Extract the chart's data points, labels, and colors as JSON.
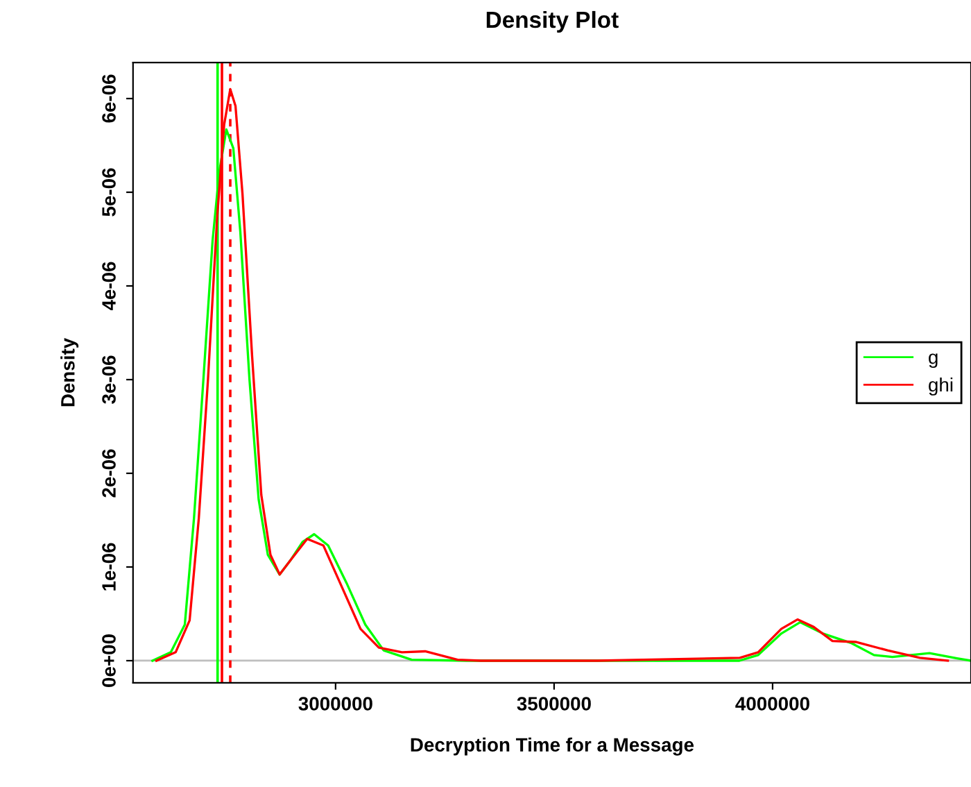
{
  "chart_data": {
    "type": "line",
    "title": "Density Plot",
    "xlabel": "Decryption Time for a Message",
    "ylabel": "Density",
    "series": [
      {
        "name": "g",
        "color": "#00ff00",
        "x": [
          2581000,
          2623000,
          2655000,
          2676000,
          2697500,
          2718500,
          2734000,
          2750000,
          2766000,
          2782000,
          2803000,
          2824000,
          2845000,
          2872000,
          2898000,
          2925000,
          2951000,
          2983000,
          3025000,
          3068000,
          3110000,
          3174000,
          3300000,
          3600000,
          3924000,
          3967000,
          4020000,
          4063000,
          4115000,
          4179000,
          4232000,
          4274000,
          4359000,
          4422000,
          4454000
        ],
        "values": [
          0,
          9e-08,
          3.85e-07,
          1.52e-06,
          3e-06,
          4.48e-06,
          5.22e-06,
          5.67e-06,
          5.47e-06,
          4.58e-06,
          3e-06,
          1.72e-06,
          1.13e-06,
          9.2e-07,
          1.08e-06,
          1.27e-06,
          1.35e-06,
          1.23e-06,
          8.3e-07,
          3.85e-07,
          1.1e-07,
          1e-08,
          0,
          0,
          0,
          6e-08,
          2.9e-07,
          4.1e-07,
          2.9e-07,
          1.9e-07,
          6e-08,
          4e-08,
          8e-08,
          2.5e-08,
          0
        ]
      },
      {
        "name": "ghi",
        "color": "#ff0000",
        "x": [
          2590000,
          2634000,
          2666000,
          2687000,
          2708000,
          2729000,
          2745000,
          2759000,
          2771000,
          2787000,
          2809000,
          2830000,
          2851000,
          2872000,
          2898000,
          2935000,
          2972000,
          3015000,
          3057000,
          3099000,
          3152000,
          3205000,
          3279000,
          3332000,
          3600000,
          3925000,
          3967000,
          4020000,
          4057000,
          4094000,
          4137000,
          4190000,
          4263000,
          4337000,
          4401000
        ],
        "values": [
          0,
          9e-08,
          4.3e-07,
          1.52e-06,
          3e-06,
          4.73e-06,
          5.72e-06,
          6.1e-06,
          5.92e-06,
          4.98e-06,
          3.25e-06,
          1.77e-06,
          1.13e-06,
          9.2e-07,
          1.08e-06,
          1.3e-06,
          1.23e-06,
          7.8e-07,
          3.4e-07,
          1.4e-07,
          9e-08,
          1e-07,
          1e-08,
          0,
          0,
          3e-08,
          9e-08,
          3.4e-07,
          4.4e-07,
          3.6e-07,
          2.1e-07,
          2e-07,
          1.1e-07,
          3e-08,
          0
        ]
      }
    ],
    "xlim": [
      2536500,
      4454000
    ],
    "ylim": [
      -2.37e-07,
      6.385e-06
    ],
    "xticks": [
      3000000,
      3500000,
      4000000
    ],
    "yticks": [
      {
        "value": 0,
        "label": "0e+00"
      },
      {
        "value": 1e-06,
        "label": "1e-06"
      },
      {
        "value": 2e-06,
        "label": "2e-06"
      },
      {
        "value": 3e-06,
        "label": "3e-06"
      },
      {
        "value": 4e-06,
        "label": "4e-06"
      },
      {
        "value": 5e-06,
        "label": "5e-06"
      },
      {
        "value": 6e-06,
        "label": "6e-06"
      }
    ],
    "ref_lines": [
      {
        "axis": "y",
        "value": 0,
        "color": "#bebebe"
      },
      {
        "axis": "x",
        "value": 2730000,
        "color": "#00ff00"
      },
      {
        "axis": "x",
        "value": 2740000,
        "color": "#ff0000"
      },
      {
        "axis": "x",
        "value": 2759000,
        "color": "#ff0000",
        "line_style": "dashed"
      }
    ],
    "legend": "right",
    "grid": false,
    "marker": "none",
    "line_style": "solid"
  }
}
